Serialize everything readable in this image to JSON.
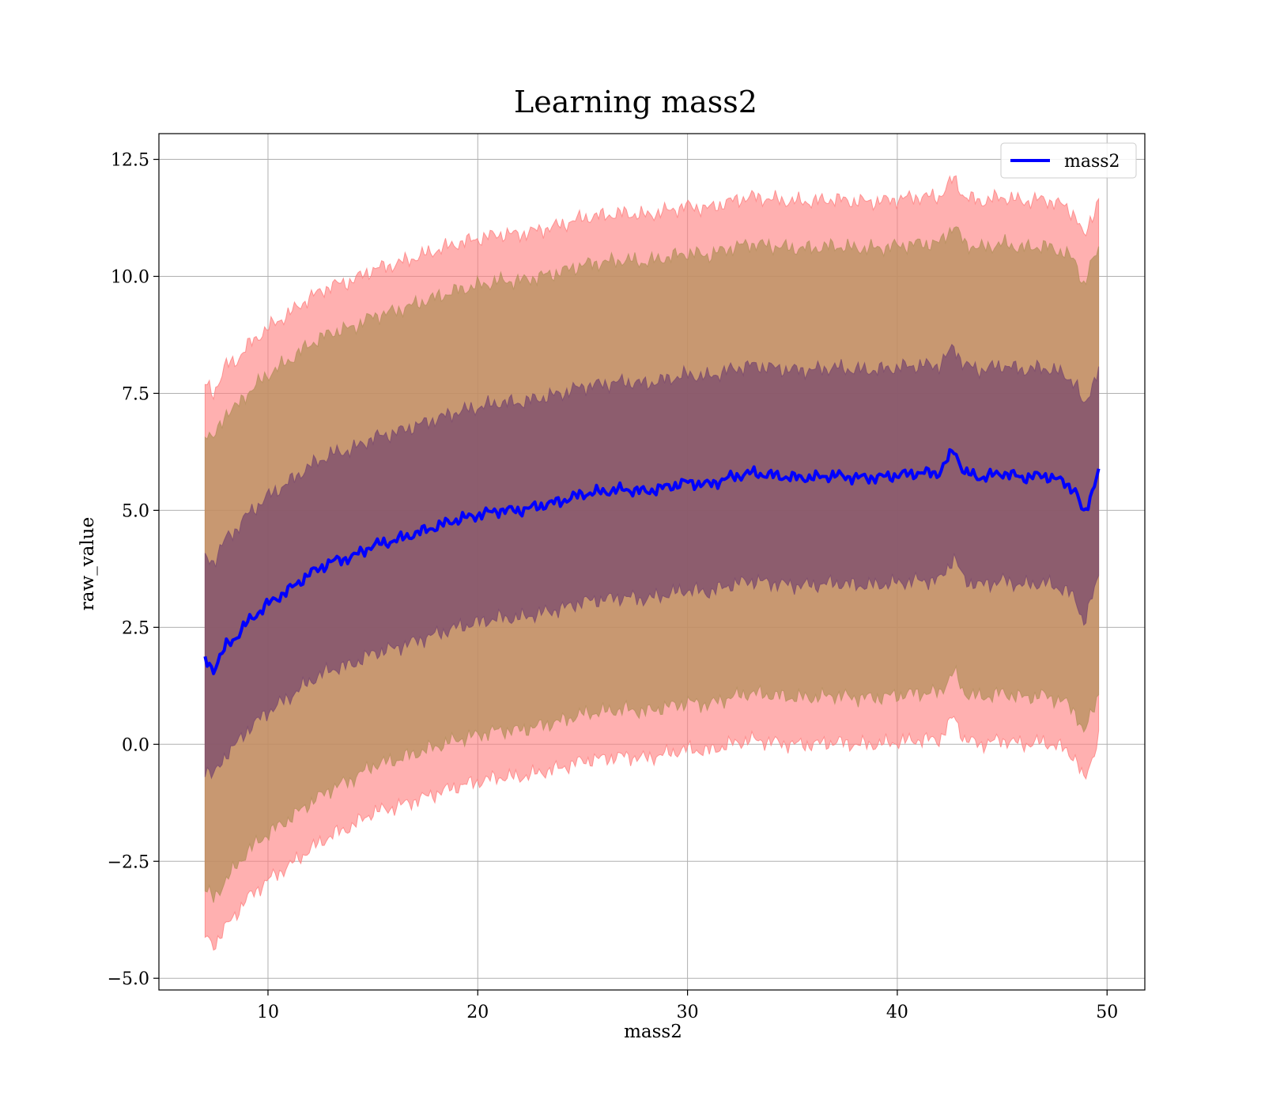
{
  "chart_data": {
    "type": "line",
    "title": "Learning mass2",
    "xlabel": "mass2",
    "ylabel": "raw_value",
    "xlim": [
      4.8,
      51.8
    ],
    "ylim": [
      -5.25,
      13.05
    ],
    "xticks": [
      10,
      20,
      30,
      40,
      50
    ],
    "xtick_labels": [
      "10",
      "20",
      "30",
      "40",
      "50"
    ],
    "yticks": [
      -5.0,
      -2.5,
      0.0,
      2.5,
      5.0,
      7.5,
      10.0,
      12.5
    ],
    "ytick_labels": [
      "−5.0",
      "−2.5",
      "0.0",
      "2.5",
      "5.0",
      "7.5",
      "10.0",
      "12.5"
    ],
    "grid": true,
    "legend_position": "upper-right",
    "series": [
      {
        "name": "mass2",
        "color": "#0000ff",
        "x": [
          7.0,
          7.4,
          8.0,
          8.5,
          9.0,
          10.0,
          11.0,
          12.0,
          13.0,
          14.0,
          15.0,
          16.0,
          17.0,
          18.0,
          19.0,
          20.0,
          21.0,
          22.0,
          23.0,
          24.0,
          25.0,
          26.0,
          27.0,
          28.0,
          29.0,
          30.0,
          31.0,
          32.0,
          33.0,
          34.0,
          35.0,
          36.0,
          37.0,
          38.0,
          39.0,
          40.0,
          41.0,
          42.0,
          42.7,
          43.2,
          44.0,
          45.0,
          46.0,
          47.0,
          48.0,
          48.5,
          48.9,
          49.2,
          49.6
        ],
        "values": [
          1.8,
          1.6,
          2.1,
          2.3,
          2.6,
          3.0,
          3.3,
          3.65,
          3.9,
          4.0,
          4.25,
          4.35,
          4.5,
          4.65,
          4.8,
          4.9,
          5.0,
          5.0,
          5.1,
          5.2,
          5.35,
          5.4,
          5.45,
          5.4,
          5.5,
          5.6,
          5.55,
          5.7,
          5.8,
          5.75,
          5.7,
          5.7,
          5.75,
          5.7,
          5.7,
          5.75,
          5.8,
          5.8,
          6.3,
          5.8,
          5.7,
          5.8,
          5.7,
          5.75,
          5.6,
          5.4,
          4.9,
          5.3,
          5.85
        ]
      }
    ],
    "bands": [
      {
        "name": "",
        "color": "#ff7f7f",
        "x": [
          7.0,
          7.4,
          8.0,
          8.5,
          9.0,
          10.0,
          11.0,
          12.0,
          13.0,
          14.0,
          15.0,
          16.0,
          17.0,
          18.0,
          19.0,
          20.0,
          21.0,
          22.0,
          23.0,
          24.0,
          25.0,
          26.0,
          27.0,
          28.0,
          29.0,
          30.0,
          31.0,
          32.0,
          33.0,
          34.0,
          35.0,
          36.0,
          37.0,
          38.0,
          39.0,
          40.0,
          41.0,
          42.0,
          42.7,
          43.2,
          44.0,
          45.0,
          46.0,
          47.0,
          48.0,
          48.5,
          48.9,
          49.2,
          49.6
        ],
        "lower": [
          -4.1,
          -4.3,
          -3.9,
          -3.6,
          -3.3,
          -2.9,
          -2.6,
          -2.25,
          -1.95,
          -1.75,
          -1.45,
          -1.35,
          -1.2,
          -1.05,
          -0.9,
          -0.8,
          -0.7,
          -0.7,
          -0.6,
          -0.5,
          -0.35,
          -0.3,
          -0.25,
          -0.3,
          -0.2,
          -0.1,
          -0.15,
          0.0,
          0.1,
          0.05,
          0.0,
          0.0,
          0.05,
          0.0,
          0.0,
          0.05,
          0.1,
          0.1,
          0.6,
          0.1,
          0.0,
          0.1,
          0.0,
          0.05,
          -0.1,
          -0.3,
          -0.8,
          -0.4,
          0.15
        ],
        "upper": [
          7.7,
          7.5,
          8.1,
          8.2,
          8.5,
          8.9,
          9.2,
          9.55,
          9.8,
          9.9,
          10.15,
          10.25,
          10.4,
          10.55,
          10.7,
          10.8,
          10.9,
          10.9,
          11.0,
          11.1,
          11.25,
          11.3,
          11.35,
          11.3,
          11.4,
          11.5,
          11.45,
          11.6,
          11.7,
          11.65,
          11.6,
          11.6,
          11.65,
          11.6,
          11.6,
          11.65,
          11.7,
          11.7,
          12.1,
          11.7,
          11.6,
          11.7,
          11.6,
          11.65,
          11.5,
          11.3,
          10.8,
          11.2,
          11.65
        ]
      },
      {
        "name": "",
        "color": "#b5905c",
        "x": [
          7.0,
          7.4,
          8.0,
          8.5,
          9.0,
          10.0,
          11.0,
          12.0,
          13.0,
          14.0,
          15.0,
          16.0,
          17.0,
          18.0,
          19.0,
          20.0,
          21.0,
          22.0,
          23.0,
          24.0,
          25.0,
          26.0,
          27.0,
          28.0,
          29.0,
          30.0,
          31.0,
          32.0,
          33.0,
          34.0,
          35.0,
          36.0,
          37.0,
          38.0,
          39.0,
          40.0,
          41.0,
          42.0,
          42.7,
          43.2,
          44.0,
          45.0,
          46.0,
          47.0,
          48.0,
          48.5,
          48.9,
          49.2,
          49.6
        ],
        "lower": [
          -3.1,
          -3.3,
          -2.9,
          -2.6,
          -2.3,
          -1.9,
          -1.6,
          -1.25,
          -0.95,
          -0.75,
          -0.45,
          -0.35,
          -0.2,
          -0.05,
          0.1,
          0.2,
          0.3,
          0.3,
          0.4,
          0.5,
          0.65,
          0.7,
          0.75,
          0.7,
          0.8,
          0.9,
          0.85,
          1.0,
          1.1,
          1.05,
          1.0,
          1.0,
          1.05,
          1.0,
          1.0,
          1.05,
          1.1,
          1.1,
          1.55,
          1.1,
          1.0,
          1.1,
          1.0,
          1.05,
          0.9,
          0.7,
          0.2,
          0.6,
          1.1
        ],
        "upper": [
          6.7,
          6.5,
          7.1,
          7.2,
          7.5,
          7.9,
          8.2,
          8.55,
          8.8,
          8.9,
          9.15,
          9.25,
          9.4,
          9.55,
          9.7,
          9.8,
          9.9,
          9.9,
          10.0,
          10.1,
          10.25,
          10.3,
          10.35,
          10.3,
          10.4,
          10.5,
          10.45,
          10.6,
          10.7,
          10.65,
          10.6,
          10.6,
          10.65,
          10.6,
          10.6,
          10.65,
          10.7,
          10.7,
          11.1,
          10.7,
          10.6,
          10.7,
          10.6,
          10.65,
          10.5,
          10.3,
          9.8,
          10.2,
          10.6
        ]
      },
      {
        "name": "",
        "color": "#7a4a6e",
        "x": [
          7.0,
          7.4,
          8.0,
          8.5,
          9.0,
          10.0,
          11.0,
          12.0,
          13.0,
          14.0,
          15.0,
          16.0,
          17.0,
          18.0,
          19.0,
          20.0,
          21.0,
          22.0,
          23.0,
          24.0,
          25.0,
          26.0,
          27.0,
          28.0,
          29.0,
          30.0,
          31.0,
          32.0,
          33.0,
          34.0,
          35.0,
          36.0,
          37.0,
          38.0,
          39.0,
          40.0,
          41.0,
          42.0,
          42.7,
          43.2,
          44.0,
          45.0,
          46.0,
          47.0,
          48.0,
          48.5,
          48.9,
          49.2,
          49.6
        ],
        "lower": [
          -0.5,
          -0.7,
          -0.2,
          0.0,
          0.3,
          0.7,
          1.0,
          1.35,
          1.6,
          1.7,
          1.95,
          2.05,
          2.2,
          2.35,
          2.5,
          2.6,
          2.7,
          2.7,
          2.8,
          2.9,
          3.05,
          3.1,
          3.15,
          3.1,
          3.2,
          3.3,
          3.25,
          3.4,
          3.5,
          3.45,
          3.4,
          3.4,
          3.45,
          3.4,
          3.4,
          3.45,
          3.5,
          3.5,
          4.0,
          3.5,
          3.4,
          3.5,
          3.4,
          3.45,
          3.3,
          3.1,
          2.6,
          3.0,
          3.6
        ],
        "upper": [
          4.0,
          3.9,
          4.4,
          4.6,
          4.9,
          5.3,
          5.6,
          5.95,
          6.2,
          6.3,
          6.55,
          6.65,
          6.8,
          6.95,
          7.1,
          7.2,
          7.3,
          7.3,
          7.4,
          7.5,
          7.65,
          7.7,
          7.75,
          7.7,
          7.8,
          7.9,
          7.85,
          8.0,
          8.1,
          8.05,
          8.0,
          8.0,
          8.05,
          8.0,
          8.0,
          8.05,
          8.1,
          8.1,
          8.5,
          8.1,
          8.0,
          8.1,
          8.0,
          8.05,
          7.9,
          7.7,
          7.2,
          7.6,
          8.0
        ]
      }
    ]
  }
}
